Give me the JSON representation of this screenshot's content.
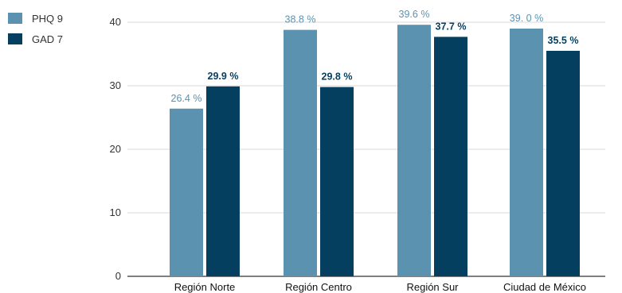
{
  "chart_data": {
    "type": "bar",
    "categories": [
      "Región Norte",
      "Región Centro",
      "Región Sur",
      "Ciudad de México"
    ],
    "series": [
      {
        "name": "PHQ 9",
        "color": "#5b92b0",
        "label_color": "#5b92b0",
        "values": [
          26.4,
          38.8,
          39.6,
          39.0
        ],
        "labels": [
          "26.4 %",
          "38.8 %",
          "39.6 %",
          "39. 0 %"
        ]
      },
      {
        "name": "GAD 7",
        "color": "#043f5f",
        "label_color": "#043f5f",
        "values": [
          29.9,
          29.8,
          37.7,
          35.5
        ],
        "labels": [
          "29.9 %",
          "29.8 %",
          "37.7 %",
          "35.5 %"
        ]
      }
    ],
    "y_ticks": [
      "0",
      "10",
      "20",
      "30",
      "40"
    ],
    "ylim": [
      0,
      40
    ],
    "grid": true,
    "legend_position": "top-left"
  }
}
